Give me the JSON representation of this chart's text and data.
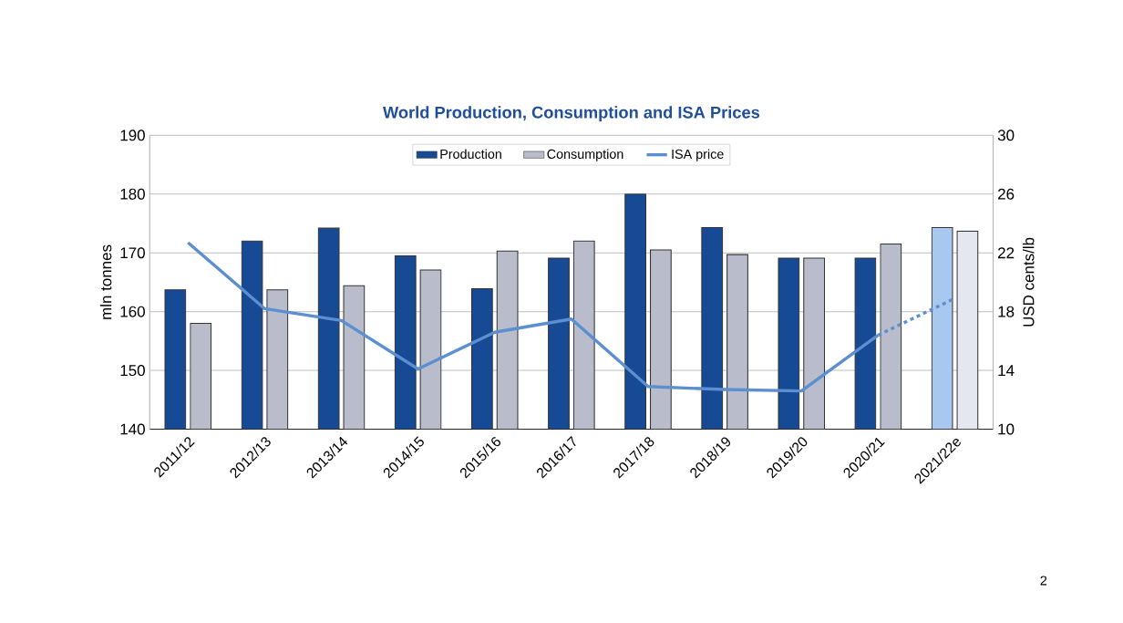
{
  "chart_data": {
    "type": "bar",
    "title": "World Production, Consumption and ISA Prices",
    "ylabel": "mln tonnes",
    "y2label": "USD cents/lb",
    "categories": [
      "2011/12",
      "2012/13",
      "2013/14",
      "2014/15",
      "2015/16",
      "2016/17",
      "2017/18",
      "2018/19",
      "2019/20",
      "2020/21",
      "2021/22e"
    ],
    "series": [
      {
        "name": "Production",
        "color": "#174a94",
        "colors": [
          "#174a94",
          "#174a94",
          "#174a94",
          "#174a94",
          "#174a94",
          "#174a94",
          "#174a94",
          "#174a94",
          "#174a94",
          "#174a94",
          "#a9c8ef"
        ],
        "values": [
          163.7,
          172.0,
          174.2,
          169.5,
          163.9,
          169.1,
          180.0,
          174.3,
          169.1,
          169.1,
          174.3
        ]
      },
      {
        "name": "Consumption",
        "color": "#b9bccb",
        "colors": [
          "#b9bccb",
          "#b9bccb",
          "#b9bccb",
          "#b9bccb",
          "#b9bccb",
          "#b9bccb",
          "#b9bccb",
          "#b9bccb",
          "#b9bccb",
          "#b9bccb",
          "#e4e6f0"
        ],
        "values": [
          158.0,
          163.7,
          164.4,
          167.1,
          170.3,
          172.0,
          170.5,
          169.7,
          169.1,
          171.5,
          173.7
        ]
      },
      {
        "name": "ISA price",
        "type": "line",
        "axis": "y2",
        "color": "#5b8fd0",
        "line_style": "solid",
        "values": [
          22.7,
          18.2,
          17.4,
          14.1,
          16.6,
          17.5,
          12.9,
          12.7,
          12.6,
          16.4,
          null
        ]
      },
      {
        "type": "line",
        "axis": "y2",
        "color": "#5b8fd0",
        "line_style": "dashed",
        "values": [
          null,
          null,
          null,
          null,
          null,
          null,
          null,
          null,
          null,
          16.4,
          18.9
        ]
      }
    ],
    "ylim": [
      140,
      190
    ],
    "yticks": [
      140,
      150,
      160,
      170,
      180,
      190
    ],
    "y2lim": [
      10,
      30
    ],
    "y2ticks": [
      10,
      14,
      18,
      22,
      26,
      30
    ],
    "grid": "y",
    "legend": "top",
    "annotations": [
      "2"
    ]
  }
}
